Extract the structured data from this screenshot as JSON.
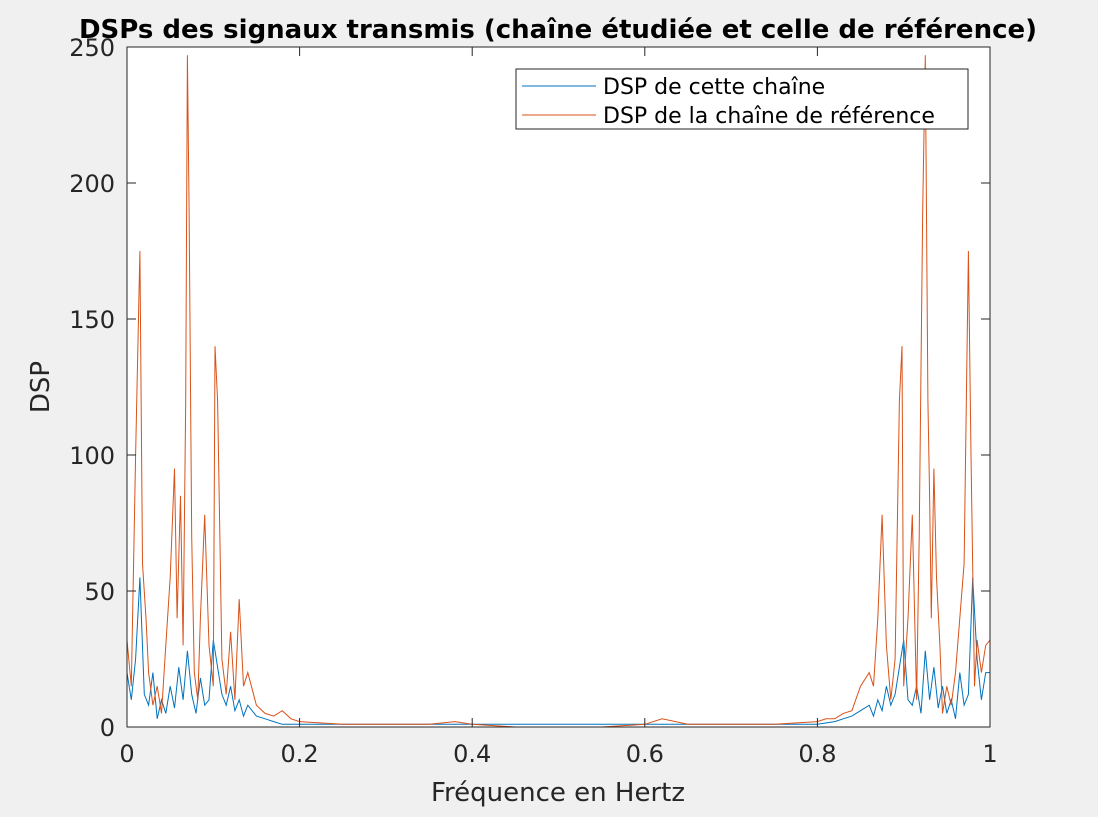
{
  "chart_data": {
    "type": "line",
    "title": "DSPs des signaux transmis (chaîne étudiée et celle de référence)",
    "xlabel": "Fréquence en Hertz",
    "ylabel": "DSP",
    "xlim": [
      0,
      1
    ],
    "ylim": [
      0,
      250
    ],
    "xticks": [
      0,
      0.2,
      0.4,
      0.6,
      0.8,
      1
    ],
    "xtick_labels": [
      "0",
      "0.2",
      "0.4",
      "0.6",
      "0.8",
      "1"
    ],
    "yticks": [
      0,
      50,
      100,
      150,
      200,
      250
    ],
    "ytick_labels": [
      "0",
      "50",
      "100",
      "150",
      "200",
      "250"
    ],
    "grid": false,
    "legend_position": "top-right",
    "series": [
      {
        "name": "DSP de cette chaîne",
        "color": "#0072bd",
        "x": [
          0,
          0.005,
          0.01,
          0.015,
          0.02,
          0.025,
          0.03,
          0.035,
          0.04,
          0.045,
          0.05,
          0.055,
          0.06,
          0.065,
          0.07,
          0.075,
          0.08,
          0.085,
          0.09,
          0.095,
          0.1,
          0.105,
          0.11,
          0.115,
          0.12,
          0.125,
          0.13,
          0.135,
          0.14,
          0.15,
          0.16,
          0.17,
          0.18,
          0.2,
          0.25,
          0.3,
          0.35,
          0.4,
          0.45,
          0.5,
          0.55,
          0.6,
          0.65,
          0.7,
          0.75,
          0.8,
          0.82,
          0.83,
          0.84,
          0.85,
          0.86,
          0.865,
          0.87,
          0.875,
          0.88,
          0.885,
          0.89,
          0.895,
          0.9,
          0.905,
          0.91,
          0.915,
          0.92,
          0.925,
          0.93,
          0.935,
          0.94,
          0.945,
          0.95,
          0.955,
          0.96,
          0.965,
          0.97,
          0.975,
          0.98,
          0.985,
          0.99,
          0.995,
          1
        ],
        "y": [
          20,
          10,
          25,
          55,
          12,
          8,
          20,
          3,
          10,
          5,
          15,
          7,
          22,
          10,
          28,
          12,
          5,
          18,
          8,
          10,
          32,
          22,
          12,
          8,
          15,
          6,
          10,
          4,
          8,
          4,
          3,
          2,
          1,
          1,
          1,
          1,
          1,
          1,
          1,
          1,
          1,
          1,
          1,
          1,
          1,
          1,
          2,
          3,
          4,
          6,
          8,
          4,
          10,
          6,
          15,
          8,
          12,
          22,
          32,
          10,
          8,
          15,
          5,
          28,
          10,
          22,
          7,
          15,
          5,
          10,
          3,
          20,
          8,
          12,
          55,
          25,
          10,
          20,
          20
        ]
      },
      {
        "name": "DSP de la chaîne de référence",
        "color": "#d95319",
        "x": [
          0,
          0.005,
          0.01,
          0.015,
          0.018,
          0.022,
          0.025,
          0.03,
          0.035,
          0.04,
          0.045,
          0.05,
          0.055,
          0.058,
          0.062,
          0.065,
          0.068,
          0.07,
          0.072,
          0.075,
          0.078,
          0.082,
          0.085,
          0.09,
          0.095,
          0.1,
          0.102,
          0.105,
          0.11,
          0.115,
          0.12,
          0.125,
          0.13,
          0.135,
          0.14,
          0.15,
          0.16,
          0.17,
          0.18,
          0.19,
          0.2,
          0.25,
          0.3,
          0.35,
          0.38,
          0.4,
          0.45,
          0.5,
          0.55,
          0.6,
          0.62,
          0.65,
          0.7,
          0.75,
          0.8,
          0.81,
          0.82,
          0.83,
          0.84,
          0.85,
          0.86,
          0.865,
          0.87,
          0.875,
          0.88,
          0.885,
          0.89,
          0.895,
          0.898,
          0.9,
          0.905,
          0.91,
          0.915,
          0.918,
          0.922,
          0.925,
          0.928,
          0.93,
          0.932,
          0.935,
          0.938,
          0.942,
          0.945,
          0.95,
          0.955,
          0.96,
          0.965,
          0.97,
          0.975,
          0.978,
          0.982,
          0.985,
          0.99,
          0.995,
          1
        ],
        "y": [
          32,
          15,
          100,
          175,
          60,
          40,
          20,
          8,
          15,
          5,
          30,
          55,
          95,
          40,
          85,
          30,
          120,
          247,
          190,
          70,
          20,
          10,
          40,
          78,
          30,
          15,
          140,
          120,
          25,
          12,
          35,
          10,
          47,
          15,
          20,
          8,
          5,
          4,
          6,
          3,
          2,
          1,
          1,
          1,
          2,
          1,
          0,
          0,
          0,
          1,
          3,
          1,
          1,
          1,
          2,
          3,
          3,
          5,
          6,
          15,
          20,
          15,
          40,
          78,
          30,
          10,
          25,
          120,
          140,
          15,
          40,
          78,
          10,
          70,
          190,
          247,
          120,
          85,
          40,
          95,
          55,
          30,
          5,
          15,
          8,
          20,
          40,
          60,
          175,
          100,
          15,
          32,
          20,
          30,
          32
        ]
      }
    ]
  }
}
